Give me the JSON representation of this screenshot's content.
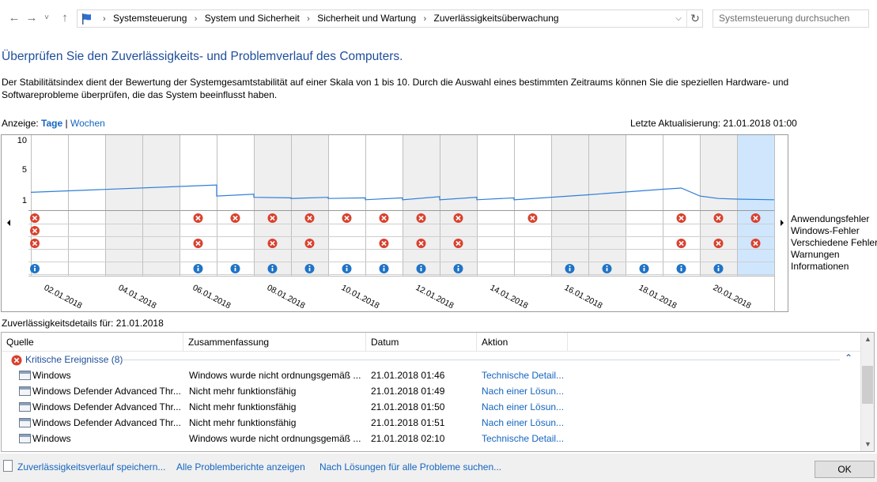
{
  "nav": {
    "back_glyph": "←",
    "forward_glyph": "→",
    "recent_glyph": "˅",
    "up_glyph": "↑",
    "breadcrumbs": [
      "Systemsteuerung",
      "System und Sicherheit",
      "Sicherheit und Wartung",
      "Zuverlässigkeitsüberwachung"
    ],
    "breadcrumb_sep": "›",
    "search_placeholder": "Systemsteuerung durchsuchen"
  },
  "page": {
    "title": "Überprüfen Sie den Zuverlässigkeits- und Problemverlauf des Computers.",
    "description": "Der Stabilitätsindex dient der Bewertung der Systemgesamtstabilität auf einer Skala von 1 bis 10. Durch die Auswahl eines bestimmten Zeitraums können Sie die speziellen Hardware- und Softwareprobleme überprüfen, die das System beeinflusst haben.",
    "view_label": "Anzeige:",
    "view_days": "Tage",
    "view_separator": "|",
    "view_weeks": "Wochen",
    "last_update": "Letzte Aktualisierung: 21.01.2018 01:00"
  },
  "chart_data": {
    "type": "line",
    "y_ticks": [
      "10",
      "5",
      "1"
    ],
    "ylim": [
      1,
      10
    ],
    "date_labels": [
      "02.01.2018",
      "04.01.2018",
      "06.01.2018",
      "08.01.2018",
      "10.01.2018",
      "12.01.2018",
      "14.01.2018",
      "16.01.2018",
      "18.01.2018",
      "20.01.2018"
    ],
    "num_days": 20,
    "selected_day": 19,
    "stability_index": [
      [
        0,
        2.1
      ],
      [
        5,
        3.3
      ],
      [
        5,
        1.5
      ],
      [
        6,
        1.8
      ],
      [
        6,
        1.3
      ],
      [
        7,
        1.2
      ],
      [
        7,
        1.1
      ],
      [
        8,
        1.3
      ],
      [
        8,
        1.1
      ],
      [
        9,
        1.2
      ],
      [
        9,
        0.9
      ],
      [
        10,
        1.2
      ],
      [
        10,
        0.9
      ],
      [
        11,
        1.4
      ],
      [
        11,
        0.9
      ],
      [
        12,
        1.3
      ],
      [
        12,
        0.9
      ],
      [
        13,
        1.2
      ],
      [
        13,
        0.9
      ],
      [
        15,
        1.7
      ],
      [
        17,
        2.6
      ],
      [
        17.5,
        2.8
      ],
      [
        18,
        1.5
      ],
      [
        18.5,
        1.1
      ],
      [
        19,
        1.0
      ],
      [
        20,
        0.9
      ]
    ],
    "event_rows": [
      {
        "name": "Anwendungsfehler",
        "icon": "error",
        "days": [
          0,
          4,
          5,
          6,
          7,
          8,
          9,
          10,
          11,
          13,
          17,
          18,
          19
        ]
      },
      {
        "name": "Windows-Fehler",
        "icon": "error",
        "days": [
          0
        ]
      },
      {
        "name": "Verschiedene Fehler",
        "icon": "error",
        "days": [
          0,
          4,
          6,
          7,
          9,
          10,
          11,
          17,
          18,
          19
        ]
      },
      {
        "name": "Warnungen",
        "icon": "warning",
        "days": []
      },
      {
        "name": "Informationen",
        "icon": "info",
        "days": [
          0,
          4,
          5,
          6,
          7,
          8,
          9,
          10,
          11,
          14,
          15,
          16,
          17,
          18
        ]
      }
    ],
    "row_labels": [
      "Anwendungsfehler",
      "Windows-Fehler",
      "Verschiedene Fehler",
      "Warnungen",
      "Informationen"
    ]
  },
  "details": {
    "header": "Zuverlässigkeitsdetails für: 21.01.2018",
    "columns": [
      "Quelle",
      "Zusammenfassung",
      "Datum",
      "Aktion"
    ],
    "group_label": "Kritische Ereignisse (8)",
    "rows": [
      {
        "source": "Windows",
        "summary": "Windows wurde nicht ordnungsgemäß ...",
        "date": "21.01.2018 01:46",
        "action": "Technische Detail..."
      },
      {
        "source": "Windows Defender Advanced Thr...",
        "summary": "Nicht mehr funktionsfähig",
        "date": "21.01.2018 01:49",
        "action": "Nach einer Lösun..."
      },
      {
        "source": "Windows Defender Advanced Thr...",
        "summary": "Nicht mehr funktionsfähig",
        "date": "21.01.2018 01:50",
        "action": "Nach einer Lösun..."
      },
      {
        "source": "Windows Defender Advanced Thr...",
        "summary": "Nicht mehr funktionsfähig",
        "date": "21.01.2018 01:51",
        "action": "Nach einer Lösun..."
      },
      {
        "source": "Windows",
        "summary": "Windows wurde nicht ordnungsgemäß ...",
        "date": "21.01.2018 02:10",
        "action": "Technische Detail..."
      }
    ]
  },
  "footer": {
    "save_link": "Zuverlässigkeitsverlauf speichern...",
    "reports_link": "Alle Problemberichte anzeigen",
    "solutions_link": "Nach Lösungen für alle Probleme suchen...",
    "ok_label": "OK"
  },
  "colors": {
    "title": "#1e4e9a",
    "link": "#1565c0",
    "line": "#2f7fd8",
    "selected_day": "#cfe6fd",
    "shaded_day": "#efefef",
    "error_icon": "#d9412e",
    "info_icon": "#1f74c6"
  },
  "icons": [
    "back-icon",
    "forward-icon",
    "up-icon",
    "control-panel-flag-icon",
    "refresh-icon",
    "error-icon",
    "info-icon",
    "event-log-icon",
    "collapse-icon"
  ]
}
